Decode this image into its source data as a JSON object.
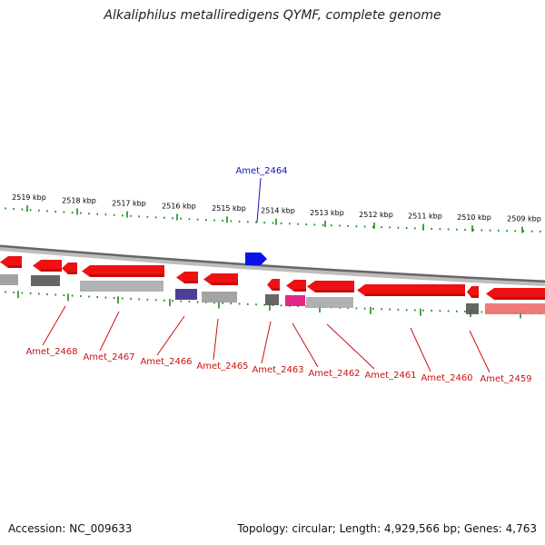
{
  "title": "Alkaliphilus metalliredigens QYMF, complete genome",
  "footer": {
    "accession": "Accession: NC_009633",
    "info": "Topology: circular; Length: 4,929,566 bp; Genes: 4,763"
  },
  "colors": {
    "forward_cds": "#0a14e6",
    "reverse_cds": "#ee1111",
    "backbone": "#8a8a8a",
    "ticks": "#1a8a1a",
    "label_forward": "#1010c0",
    "label_reverse": "#cc1010"
  },
  "scale_labels": [
    "2519 kbp",
    "2518 kbp",
    "2517 kbp",
    "2516 kbp",
    "2515 kbp",
    "2514 kbp",
    "2513 kbp",
    "2512 kbp",
    "2511 kbp",
    "2510 kbp",
    "2509 kbp"
  ],
  "genes": {
    "forward": [
      {
        "label": "Amet_2464"
      }
    ],
    "reverse": [
      {
        "label": "Amet_2468"
      },
      {
        "label": "Amet_2467"
      },
      {
        "label": "Amet_2466"
      },
      {
        "label": "Amet_2465"
      },
      {
        "label": "Amet_2463"
      },
      {
        "label": "Amet_2462"
      },
      {
        "label": "Amet_2461"
      },
      {
        "label": "Amet_2460"
      },
      {
        "label": "Amet_2459"
      }
    ]
  }
}
